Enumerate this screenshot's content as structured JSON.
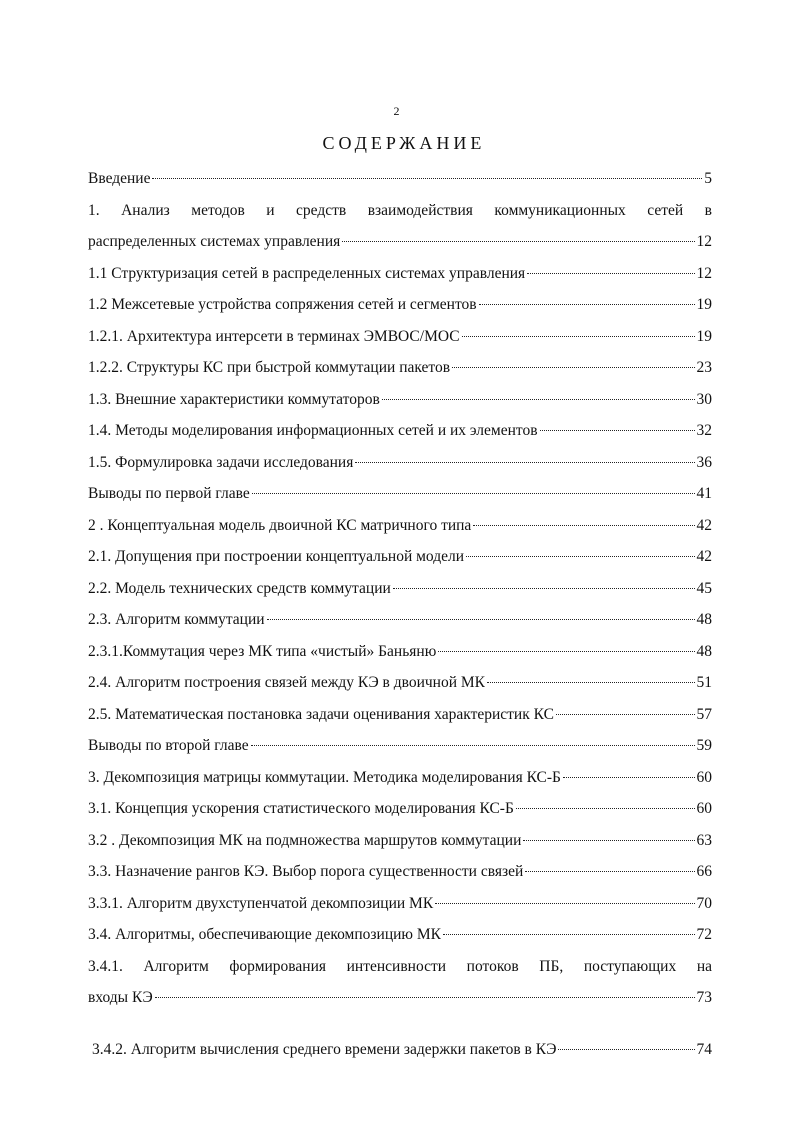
{
  "page_number": "2",
  "title": "СОДЕРЖАНИЕ",
  "entries": [
    {
      "lines": [
        "Введение"
      ],
      "page": 5
    },
    {
      "lines": [
        "1.  Анализ методов и средств взаимодействия коммуникационных сетей в",
        "распределенных системах управления"
      ],
      "page": 12
    },
    {
      "lines": [
        "1.1  Структуризация сетей в распределенных системах управления"
      ],
      "page": 12
    },
    {
      "lines": [
        "1.2 Межсетевые устройства сопряжения сетей и сегментов"
      ],
      "page": 19
    },
    {
      "lines": [
        "1.2.1. Архитектура интерсети в терминах ЭМВОС/МОС"
      ],
      "page": 19
    },
    {
      "lines": [
        "1.2.2. Структуры КС при быстрой коммутации пакетов"
      ],
      "page": 23
    },
    {
      "lines": [
        "1.3. Внешние характеристики коммутаторов"
      ],
      "page": 30
    },
    {
      "lines": [
        "1.4. Методы моделирования информационных сетей и их элементов"
      ],
      "page": 32
    },
    {
      "lines": [
        "1.5. Формулировка задачи исследования"
      ],
      "page": 36
    },
    {
      "lines": [
        "Выводы по первой главе"
      ],
      "page": 41
    },
    {
      "lines": [
        "2 .  Концептуальная модель двоичной КС матричного типа"
      ],
      "page": 42
    },
    {
      "lines": [
        "2.1. Допущения при построении концептуальной модели"
      ],
      "page": 42
    },
    {
      "lines": [
        "2.2. Модель технических средств коммутации"
      ],
      "page": 45
    },
    {
      "lines": [
        "2.3. Алгоритм коммутации"
      ],
      "page": 48
    },
    {
      "lines": [
        "2.3.1.Коммутация через МК типа «чистый» Баньяню"
      ],
      "page": 48
    },
    {
      "lines": [
        "2.4. Алгоритм построения связей между КЭ в двоичной МК"
      ],
      "page": 51
    },
    {
      "lines": [
        "2.5. Математическая постановка задачи оценивания характеристик КС"
      ],
      "page": 57
    },
    {
      "lines": [
        "Выводы по второй главе"
      ],
      "page": 59
    },
    {
      "lines": [
        "3. Декомпозиция матрицы коммутации. Методика моделирования КС-Б"
      ],
      "page": 60
    },
    {
      "lines": [
        "3.1. Концепция ускорения статистического моделирования КС-Б"
      ],
      "page": 60
    },
    {
      "lines": [
        "3.2 . Декомпозиция МК на подмножества маршрутов коммутации"
      ],
      "page": 63
    },
    {
      "lines": [
        "3.3. Назначение рангов КЭ. Выбор порога существенности связей"
      ],
      "page": 66
    },
    {
      "lines": [
        "3.3.1. Алгоритм двухступенчатой декомпозиции МК"
      ],
      "page": 70
    },
    {
      "lines": [
        "3.4. Алгоритмы, обеспечивающие декомпозицию МК"
      ],
      "page": 72
    },
    {
      "lines": [
        "3.4.1. Алгоритм формирования интенсивности потоков ПБ,  поступающих на",
        "входы КЭ"
      ],
      "page": 73
    },
    {
      "lines": [
        "3.4.2. Алгоритм вычисления среднего времени задержки пакетов в КЭ"
      ],
      "page": 74
    }
  ]
}
